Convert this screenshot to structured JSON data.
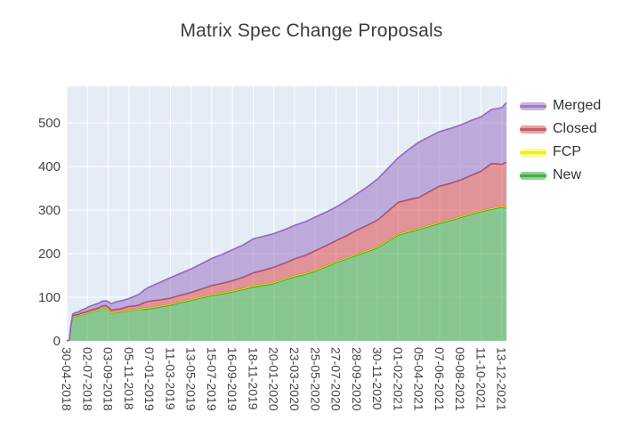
{
  "title": "Matrix Spec Change Proposals",
  "colors": {
    "page_background": "#ffffff",
    "plot_background": "#e5ecf6",
    "gridline": "#ffffff",
    "title_text": "#3c3c3c",
    "axis_text": "#444444",
    "legend_text": "#333333"
  },
  "legend": {
    "position": "right-top",
    "items": [
      "Merged",
      "Closed",
      "FCP",
      "New"
    ]
  },
  "chart_data": {
    "type": "area",
    "stacked": true,
    "title": "Matrix Spec Change Proposals",
    "xlabel": "",
    "ylabel": "",
    "grid": true,
    "x_unit": "days since 30-04-2018",
    "x_range_days": [
      0,
      1340
    ],
    "ylim": [
      0,
      584
    ],
    "y_ticks": [
      0,
      100,
      200,
      300,
      400,
      500
    ],
    "x_tick_days": [
      0,
      63,
      126,
      189,
      252,
      315,
      378,
      441,
      504,
      567,
      630,
      693,
      756,
      819,
      882,
      945,
      1008,
      1071,
      1134,
      1197,
      1260,
      1323
    ],
    "x_tick_labels": [
      "30-04-2018",
      "02-07-2018",
      "03-09-2018",
      "05-11-2018",
      "07-01-2019",
      "11-03-2019",
      "13-05-2019",
      "15-07-2019",
      "16-09-2019",
      "18-11-2019",
      "20-01-2020",
      "23-03-2020",
      "25-05-2020",
      "27-07-2020",
      "28-09-2020",
      "30-11-2020",
      "01-02-2021",
      "05-04-2021",
      "07-06-2021",
      "09-08-2021",
      "11-10-2021",
      "13-12-2021"
    ],
    "stack_order_bottom_to_top": [
      "New",
      "FCP",
      "Closed",
      "Merged"
    ],
    "x_days": [
      0,
      8,
      12,
      18,
      24,
      34,
      45,
      56,
      63,
      80,
      95,
      108,
      118,
      126,
      135,
      148,
      160,
      175,
      189,
      205,
      220,
      236,
      252,
      283,
      315,
      346,
      378,
      410,
      441,
      472,
      504,
      536,
      567,
      598,
      630,
      662,
      693,
      725,
      756,
      788,
      819,
      850,
      882,
      914,
      945,
      976,
      1008,
      1040,
      1071,
      1102,
      1134,
      1165,
      1197,
      1228,
      1260,
      1292,
      1323,
      1337
    ],
    "series": [
      {
        "name": "Merged",
        "line": "#9467bd",
        "fill": "rgba(148,103,189,0.5)",
        "values": [
          0,
          0,
          1,
          4,
          5,
          6,
          7,
          8,
          9,
          10,
          11,
          11,
          11,
          12,
          15,
          17,
          18,
          18,
          18,
          22,
          25,
          29,
          33,
          40,
          47,
          50,
          54,
          58,
          62,
          66,
          71,
          74,
          78,
          78,
          77,
          77,
          77,
          77,
          77,
          77,
          77,
          80,
          83,
          88,
          94,
          98,
          102,
          115,
          127,
          126,
          125,
          126,
          126,
          126,
          125,
          124,
          130,
          136
        ]
      },
      {
        "name": "Closed",
        "line": "#b04a5a",
        "fill": "rgba(214,39,40,0.45)",
        "values": [
          0,
          0,
          1,
          2,
          2,
          2,
          3,
          3,
          3,
          3,
          4,
          4,
          4,
          4,
          5,
          6,
          6,
          7,
          8,
          8,
          9,
          12,
          15,
          14,
          14,
          15,
          16,
          18,
          21,
          22,
          23,
          26,
          29,
          32,
          35,
          36,
          38,
          41,
          45,
          46,
          48,
          51,
          55,
          58,
          61,
          67,
          73,
          72,
          71,
          77,
          83,
          83,
          84,
          87,
          90,
          103,
          96,
          102
        ]
      },
      {
        "name": "FCP",
        "line": "#e0e02e",
        "fill": "rgba(255,255,0,0.55)",
        "values": [
          0,
          0,
          0,
          1,
          1,
          1,
          1,
          1,
          1,
          1,
          1,
          1,
          1,
          1,
          1,
          1,
          1,
          1,
          1,
          1,
          1,
          3,
          2,
          2,
          2,
          2,
          2,
          2,
          2,
          2,
          2,
          2,
          3,
          2,
          2,
          2,
          3,
          2,
          2,
          2,
          2,
          2,
          2,
          2,
          2,
          2,
          2,
          2,
          2,
          2,
          2,
          2,
          2,
          2,
          2,
          2,
          2,
          3
        ]
      },
      {
        "name": "New",
        "line": "#2ca02c",
        "fill": "rgba(44,160,44,0.5)",
        "values": [
          0,
          2,
          30,
          54,
          56,
          57,
          60,
          62,
          64,
          68,
          70,
          75,
          76,
          73,
          64,
          65,
          66,
          68,
          70,
          71,
          72,
          73,
          74,
          78,
          82,
          88,
          93,
          99,
          104,
          108,
          113,
          118,
          124,
          128,
          132,
          140,
          147,
          153,
          160,
          170,
          180,
          188,
          197,
          205,
          214,
          228,
          243,
          250,
          256,
          263,
          270,
          276,
          283,
          290,
          297,
          302,
          307,
          305
        ]
      }
    ]
  }
}
